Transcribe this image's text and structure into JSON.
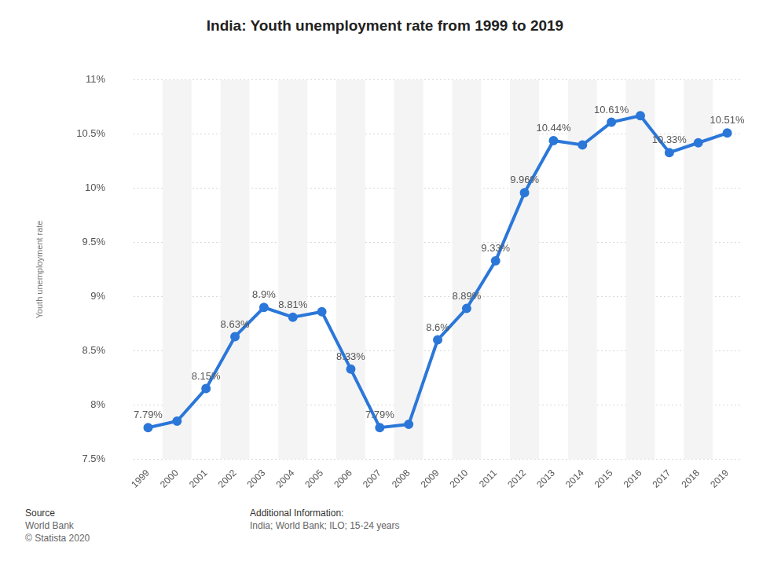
{
  "chart_data": {
    "type": "line",
    "title": "India: Youth unemployment rate from 1999 to 2019",
    "y_label": "Youth unemployment rate",
    "categories": [
      "1999",
      "2000",
      "2001",
      "2002",
      "2003",
      "2004",
      "2005",
      "2006",
      "2007",
      "2008",
      "2009",
      "2010",
      "2011",
      "2012",
      "2013",
      "2014",
      "2015",
      "2016",
      "2017",
      "2018",
      "2019"
    ],
    "values": [
      7.79,
      7.85,
      8.15,
      8.63,
      8.9,
      8.81,
      8.86,
      8.33,
      7.79,
      7.82,
      8.6,
      8.89,
      9.33,
      9.96,
      10.44,
      10.4,
      10.61,
      10.67,
      10.33,
      10.42,
      10.51
    ],
    "value_labels": [
      "7.79%",
      null,
      "8.15%",
      "8.63%",
      "8.9%",
      "8.81%",
      null,
      "8.33%",
      "7.79%",
      null,
      "8.6%",
      "8.89%",
      "9.33%",
      "9.96%",
      "10.44%",
      null,
      "10.61%",
      null,
      "10.33%",
      null,
      "10.51%"
    ],
    "color": "#2b77d9",
    "marker": "circle",
    "data_labels": true,
    "grid": true,
    "ylim": [
      7.5,
      11
    ],
    "yticks": [
      {
        "value": 7.5,
        "label": "7.5%"
      },
      {
        "value": 8,
        "label": "8%"
      },
      {
        "value": 8.5,
        "label": "8.5%"
      },
      {
        "value": 9,
        "label": "9%"
      },
      {
        "value": 9.5,
        "label": "9.5%"
      },
      {
        "value": 10,
        "label": "10%"
      },
      {
        "value": 10.5,
        "label": "10.5%"
      },
      {
        "value": 11,
        "label": "11%"
      }
    ]
  },
  "footer": {
    "source_title": "Source",
    "source_lines": [
      "World Bank",
      "© Statista 2020"
    ],
    "info_title": "Additional Information:",
    "info_text": "India; World Bank; ILO; 15-24 years"
  }
}
